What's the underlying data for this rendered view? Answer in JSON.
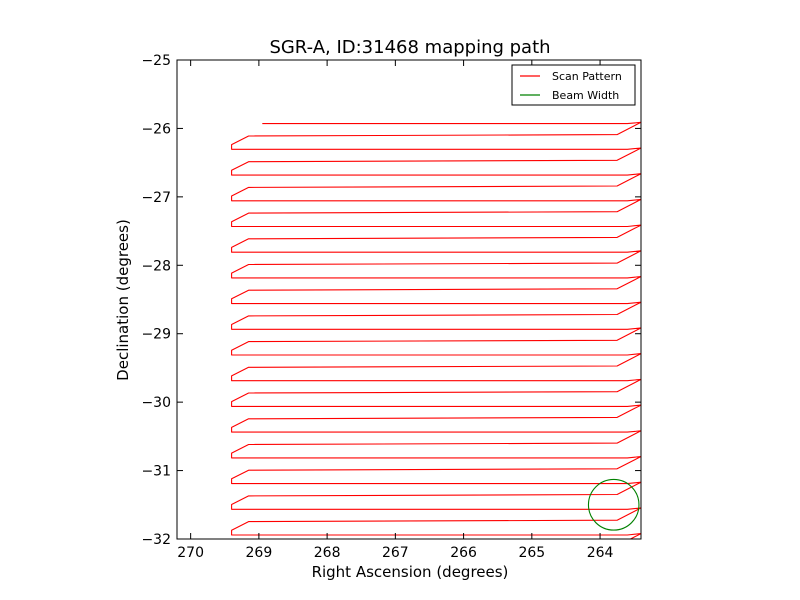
{
  "chart_data": {
    "type": "line",
    "title": "SGR-A, ID:31468 mapping path",
    "xlabel": "Right Ascension (degrees)",
    "ylabel": "Declination (degrees)",
    "xlim": [
      270.2,
      263.4
    ],
    "ylim": [
      -32,
      -25
    ],
    "xticks": [
      270,
      269,
      268,
      267,
      266,
      265,
      264
    ],
    "xtick_labels": [
      "270",
      "269",
      "268",
      "267",
      "266",
      "265",
      "264"
    ],
    "yticks": [
      -25,
      -26,
      -27,
      -28,
      -29,
      -30,
      -31,
      -32
    ],
    "ytick_labels": [
      "−25",
      "−26",
      "−27",
      "−28",
      "−29",
      "−30",
      "−31",
      "−32"
    ],
    "grid": false,
    "legend": {
      "position": "top-right",
      "entries": [
        "Scan Pattern",
        "Beam Width"
      ]
    },
    "series": [
      {
        "name": "Scan Pattern",
        "color": "#ff0000",
        "scan_ra": [
          269.4,
          263.4
        ],
        "scan_start_ra": 268.95,
        "dec_start": -25.93,
        "dec_step": -0.3757,
        "n_rows": 17,
        "note_shape": "boustrophedon raster; each row traverses RA then returns with a small diagonal offset"
      },
      {
        "name": "Beam Width",
        "color": "#008000",
        "center_ra": 263.8,
        "center_dec": -31.5,
        "radius_deg": 0.37
      }
    ]
  }
}
